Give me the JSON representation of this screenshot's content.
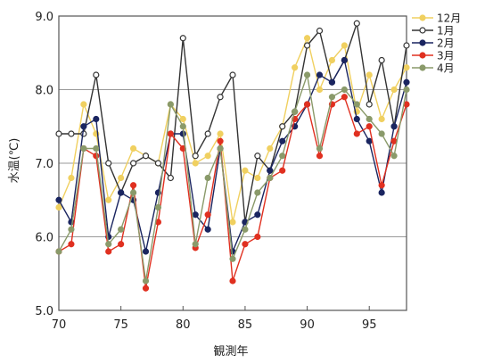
{
  "chart_data": {
    "type": "line",
    "xlabel": "観測年",
    "ylabel": "水温(℃)",
    "xlim": [
      70,
      98
    ],
    "ylim": [
      5.0,
      9.0
    ],
    "x_ticks": [
      "70",
      "75",
      "80",
      "85",
      "90",
      "95"
    ],
    "y_ticks": [
      "5.0",
      "6.0",
      "7.0",
      "8.0",
      "9.0"
    ],
    "grid": "horizontal",
    "legend_position": "right",
    "x": [
      70,
      71,
      72,
      73,
      74,
      75,
      76,
      77,
      78,
      79,
      80,
      81,
      82,
      83,
      84,
      85,
      86,
      87,
      88,
      89,
      90,
      91,
      92,
      93,
      94,
      95,
      96,
      97,
      98
    ],
    "series": [
      {
        "name": "12月",
        "color": "#f0d060",
        "marker": "filled",
        "values": [
          6.4,
          6.8,
          7.8,
          7.4,
          6.5,
          6.8,
          7.2,
          7.1,
          7.0,
          7.8,
          7.6,
          7.0,
          7.1,
          7.4,
          6.2,
          6.9,
          6.8,
          7.2,
          7.5,
          8.3,
          8.7,
          8.0,
          8.4,
          8.6,
          7.7,
          8.2,
          7.6,
          8.0,
          8.3
        ]
      },
      {
        "name": "1月",
        "color": "#333333",
        "marker": "open",
        "values": [
          7.4,
          7.4,
          7.4,
          8.2,
          7.0,
          6.6,
          7.0,
          7.1,
          7.0,
          6.8,
          8.7,
          7.1,
          7.4,
          7.9,
          8.2,
          6.2,
          7.1,
          6.9,
          7.5,
          7.7,
          8.6,
          8.8,
          8.1,
          8.4,
          8.9,
          7.8,
          8.4,
          7.5,
          8.6
        ]
      },
      {
        "name": "2月",
        "color": "#1a2560",
        "marker": "filled",
        "values": [
          6.5,
          6.2,
          7.5,
          7.6,
          6.0,
          6.6,
          6.5,
          5.8,
          6.6,
          7.4,
          7.4,
          6.3,
          6.1,
          7.2,
          5.8,
          6.2,
          6.3,
          6.9,
          7.3,
          7.5,
          7.8,
          8.2,
          8.1,
          8.4,
          7.6,
          7.3,
          6.6,
          7.5,
          8.1
        ]
      },
      {
        "name": "3月",
        "color": "#e03020",
        "marker": "filled",
        "values": [
          5.8,
          5.9,
          7.2,
          7.1,
          5.8,
          5.9,
          6.7,
          5.3,
          6.2,
          7.4,
          7.2,
          5.85,
          6.3,
          7.3,
          5.4,
          5.9,
          6.0,
          6.8,
          6.9,
          7.6,
          7.8,
          7.1,
          7.8,
          7.9,
          7.4,
          7.5,
          6.7,
          7.3,
          7.8
        ]
      },
      {
        "name": "4月",
        "color": "#8a9a6a",
        "marker": "filled",
        "values": [
          5.8,
          6.1,
          7.2,
          7.2,
          5.9,
          6.1,
          6.6,
          5.4,
          6.4,
          7.8,
          7.5,
          5.9,
          6.8,
          7.2,
          5.7,
          6.1,
          6.6,
          6.8,
          7.1,
          7.7,
          8.2,
          7.2,
          7.9,
          8.0,
          7.8,
          7.6,
          7.4,
          7.1,
          8.0
        ]
      }
    ]
  }
}
